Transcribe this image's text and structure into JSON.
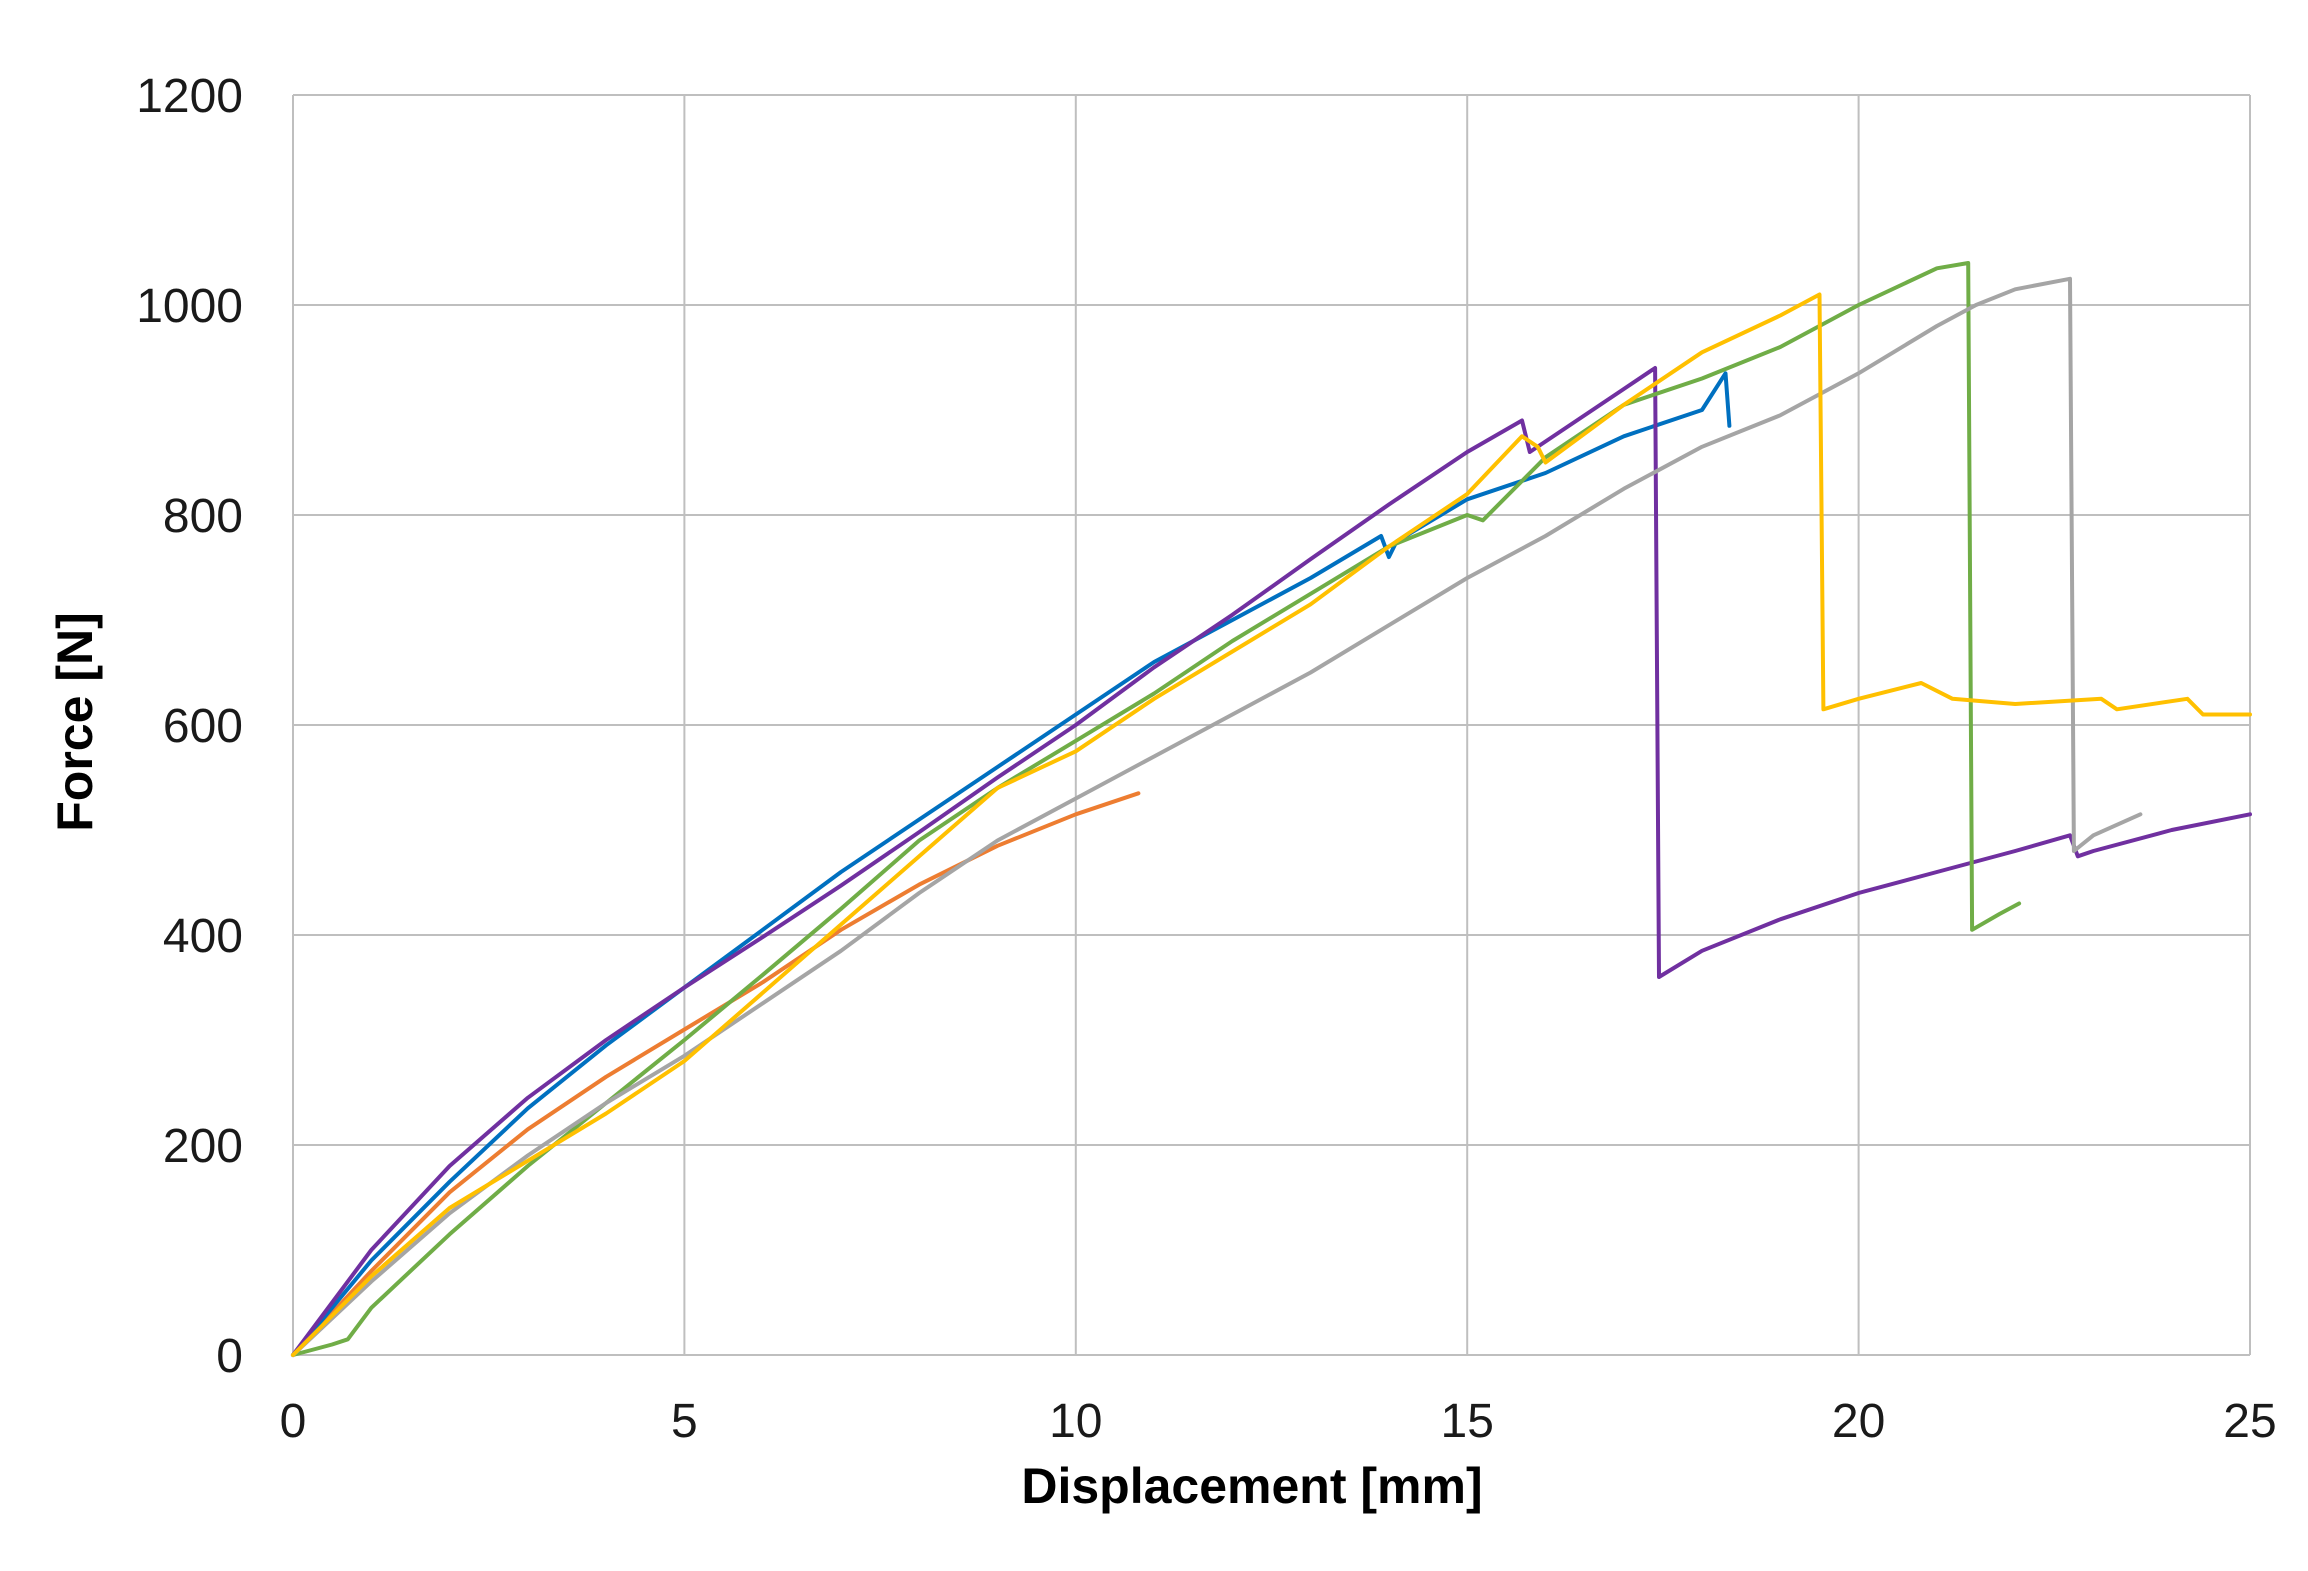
{
  "chart_data": {
    "type": "line",
    "title": "",
    "xlabel": "Displacement [mm]",
    "ylabel": "Force [N]",
    "xlim": [
      0,
      25
    ],
    "ylim": [
      0,
      1200
    ],
    "xticks": [
      0,
      5,
      10,
      15,
      20,
      25
    ],
    "yticks": [
      0,
      200,
      400,
      600,
      800,
      1000,
      1200
    ],
    "xtick_labels": [
      "0",
      "5",
      "10",
      "15",
      "20",
      "25"
    ],
    "ytick_labels": [
      "0",
      "200",
      "400",
      "600",
      "800",
      "1000",
      "1200"
    ],
    "grid": true,
    "legend": "none",
    "series": [
      {
        "color": "#ED7D31",
        "x": [
          0,
          1,
          2,
          3,
          4,
          5,
          6,
          7,
          8,
          9,
          10,
          10.8
        ],
        "y": [
          0,
          80,
          155,
          215,
          265,
          310,
          355,
          405,
          448,
          485,
          515,
          535
        ]
      },
      {
        "color": "#0070C0",
        "x": [
          0,
          1,
          2,
          3,
          4,
          5,
          6,
          7,
          8,
          9,
          10,
          11,
          12,
          13,
          13.9,
          14.0,
          14.1,
          15,
          16,
          17,
          18,
          18.3,
          18.35
        ],
        "y": [
          0,
          90,
          165,
          235,
          295,
          350,
          405,
          460,
          510,
          560,
          610,
          660,
          700,
          740,
          780,
          760,
          775,
          815,
          840,
          875,
          900,
          935,
          885
        ]
      },
      {
        "color": "#7030A0",
        "x": [
          0,
          1,
          2,
          3,
          4,
          5,
          6,
          7,
          8,
          9,
          10,
          11,
          12,
          13,
          14,
          15,
          15.7,
          15.8,
          16,
          17,
          17.4,
          17.45,
          18,
          19,
          20,
          21,
          22,
          22.7,
          22.8,
          23,
          24,
          25
        ],
        "y": [
          0,
          100,
          180,
          245,
          300,
          350,
          398,
          447,
          498,
          550,
          600,
          655,
          705,
          758,
          810,
          860,
          890,
          860,
          870,
          920,
          940,
          360,
          385,
          415,
          440,
          460,
          480,
          495,
          475,
          480,
          500,
          515
        ]
      },
      {
        "color": "#70AD47",
        "x": [
          0,
          0.5,
          0.7,
          1,
          2,
          3,
          4,
          5,
          6,
          7,
          8,
          9,
          10,
          11,
          12,
          13,
          14,
          15,
          15.2,
          16,
          17,
          18,
          19,
          20,
          21,
          21.4,
          21.45,
          21.8,
          22.05
        ],
        "y": [
          0,
          10,
          15,
          45,
          115,
          180,
          240,
          300,
          362,
          425,
          490,
          540,
          585,
          630,
          680,
          725,
          770,
          800,
          795,
          855,
          905,
          930,
          960,
          1000,
          1035,
          1040,
          405,
          420,
          430
        ]
      },
      {
        "color": "#A5A5A5",
        "x": [
          0,
          1,
          2,
          3,
          4,
          5,
          6,
          7,
          8,
          9,
          10,
          11,
          12,
          13,
          14,
          15,
          16,
          17,
          18,
          18.5,
          19,
          20,
          21,
          21.5,
          22,
          22.7,
          22.75,
          23,
          23.6
        ],
        "y": [
          0,
          70,
          135,
          190,
          240,
          285,
          335,
          385,
          440,
          490,
          530,
          570,
          610,
          650,
          695,
          740,
          780,
          825,
          865,
          880,
          895,
          935,
          980,
          1000,
          1015,
          1025,
          480,
          495,
          515
        ]
      },
      {
        "color": "#FFC000",
        "x": [
          0,
          1,
          2,
          3,
          4,
          5,
          6,
          7,
          8,
          9,
          10,
          11,
          12,
          13,
          14,
          15,
          15.7,
          15.9,
          16,
          17,
          18,
          19,
          19.5,
          19.55,
          20,
          20.8,
          21.2,
          22,
          23.1,
          23.3,
          24.2,
          24.4,
          25
        ],
        "y": [
          0,
          75,
          140,
          185,
          230,
          280,
          345,
          410,
          475,
          540,
          575,
          625,
          670,
          715,
          770,
          820,
          875,
          865,
          850,
          905,
          955,
          990,
          1010,
          615,
          625,
          640,
          625,
          620,
          625,
          615,
          625,
          610,
          610
        ]
      }
    ]
  }
}
